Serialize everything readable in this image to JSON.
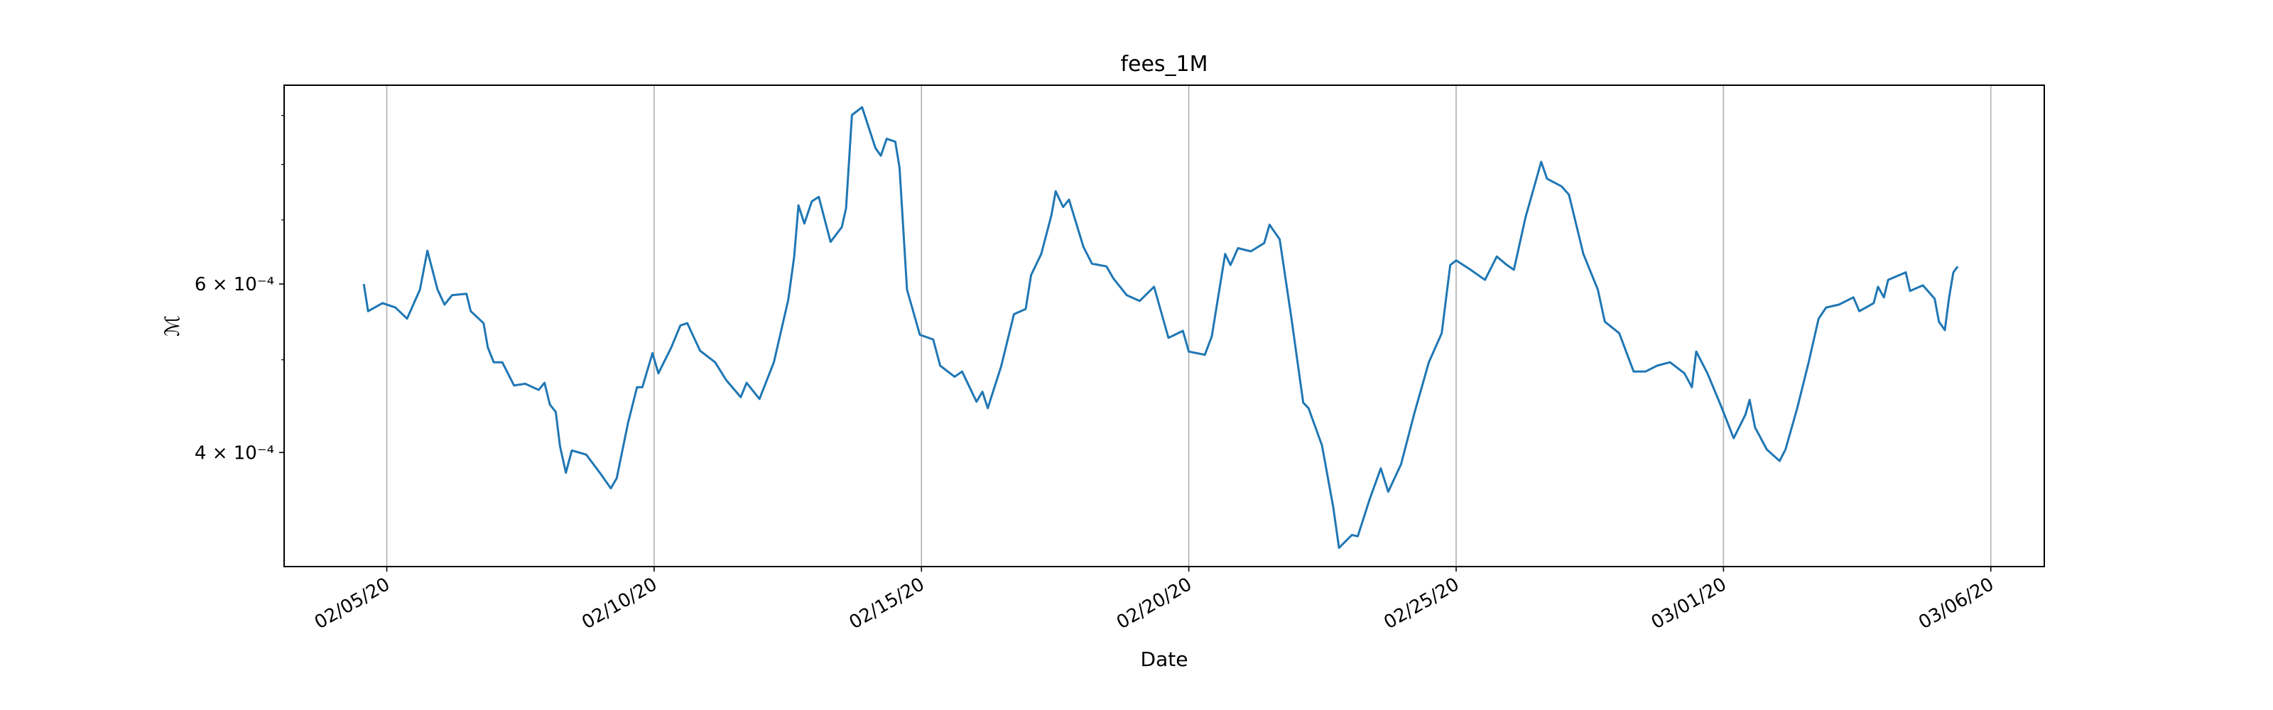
{
  "chart_data": {
    "type": "line",
    "title": "fees_1M",
    "xlabel": "Date",
    "ylabel": "ℳ",
    "xlim": [
      18295.08,
      18328
    ],
    "ylim": [
      0.000304,
      0.000968
    ],
    "yscale": "log",
    "grid": "x",
    "xticks": [
      {
        "value": 18297,
        "label": "02/05/20"
      },
      {
        "value": 18302,
        "label": "02/10/20"
      },
      {
        "value": 18307,
        "label": "02/15/20"
      },
      {
        "value": 18312,
        "label": "02/20/20"
      },
      {
        "value": 18317,
        "label": "02/25/20"
      },
      {
        "value": 18322,
        "label": "03/01/20"
      },
      {
        "value": 18327,
        "label": "03/06/20"
      }
    ],
    "yticks": [
      {
        "value": 0.0004,
        "label": "4 × 10⁻⁴"
      },
      {
        "value": 0.0006,
        "label": "6 × 10⁻⁴"
      }
    ],
    "yminorticks": [
      0.0005,
      0.0007,
      0.0008,
      0.0009
    ],
    "x": [
      18296.57,
      18296.65,
      18296.92,
      18297.16,
      18297.38,
      18297.62,
      18297.76,
      18297.95,
      18298.08,
      18298.22,
      18298.49,
      18298.57,
      18298.81,
      18298.89,
      18299.0,
      18299.16,
      18299.38,
      18299.59,
      18299.84,
      18299.95,
      18300.05,
      18300.16,
      18300.24,
      18300.35,
      18300.46,
      18300.73,
      18301.0,
      18301.19,
      18301.3,
      18301.51,
      18301.68,
      18301.78,
      18301.97,
      18302.08,
      18302.32,
      18302.49,
      18302.62,
      18302.86,
      18303.14,
      18303.35,
      18303.62,
      18303.73,
      18303.97,
      18304.24,
      18304.51,
      18304.62,
      18304.7,
      18304.81,
      18304.95,
      18305.08,
      18305.3,
      18305.51,
      18305.59,
      18305.7,
      18305.89,
      18306.14,
      18306.24,
      18306.35,
      18306.51,
      18306.59,
      18306.73,
      18306.97,
      18307.22,
      18307.35,
      18307.62,
      18307.76,
      18308.03,
      18308.14,
      18308.24,
      18308.49,
      18308.73,
      18308.95,
      18309.05,
      18309.24,
      18309.43,
      18309.51,
      18309.65,
      18309.76,
      18310.03,
      18310.19,
      18310.46,
      18310.59,
      18310.84,
      18311.08,
      18311.35,
      18311.62,
      18311.89,
      18312.0,
      18312.3,
      18312.43,
      18312.68,
      18312.78,
      18312.92,
      18313.16,
      18313.41,
      18313.51,
      18313.7,
      18313.92,
      18314.14,
      18314.24,
      18314.49,
      18314.7,
      18314.81,
      18315.05,
      18315.16,
      18315.38,
      18315.59,
      18315.73,
      18315.97,
      18316.22,
      18316.49,
      18316.73,
      18316.89,
      18317.0,
      18317.27,
      18317.54,
      18317.76,
      18317.95,
      18318.08,
      18318.3,
      18318.51,
      18318.59,
      18318.7,
      18318.97,
      18319.11,
      18319.38,
      18319.65,
      18319.78,
      18320.05,
      18320.32,
      18320.54,
      18320.76,
      18321.0,
      18321.27,
      18321.41,
      18321.49,
      18321.7,
      18321.95,
      18322.19,
      18322.41,
      18322.49,
      18322.59,
      18322.81,
      18323.05,
      18323.16,
      18323.38,
      18323.59,
      18323.78,
      18323.92,
      18324.16,
      18324.43,
      18324.54,
      18324.81,
      18324.89,
      18325.0,
      18325.08,
      18325.41,
      18325.49,
      18325.73,
      18325.95,
      18326.03,
      18326.14,
      18326.22,
      18326.3,
      18326.38
    ],
    "series": [
      {
        "name": "fees_1M",
        "color": "#1f77b4",
        "values": [
          0.0006,
          0.000562,
          0.000573,
          0.000567,
          0.000552,
          0.000592,
          0.00065,
          0.000592,
          0.000571,
          0.000584,
          0.000586,
          0.000562,
          0.000546,
          0.000515,
          0.000497,
          0.000497,
          0.00047,
          0.000472,
          0.000465,
          0.000473,
          0.000449,
          0.000441,
          0.000406,
          0.000381,
          0.000402,
          0.000398,
          0.00038,
          0.000367,
          0.000376,
          0.000429,
          0.000468,
          0.000468,
          0.000508,
          0.000484,
          0.000515,
          0.000543,
          0.000546,
          0.000511,
          0.000497,
          0.000476,
          0.000457,
          0.000473,
          0.000455,
          0.000497,
          0.000578,
          0.000641,
          0.000725,
          0.000694,
          0.000732,
          0.00074,
          0.000664,
          0.000688,
          0.00072,
          0.000901,
          0.000918,
          0.000832,
          0.000817,
          0.000851,
          0.000845,
          0.000794,
          0.000592,
          0.000531,
          0.000525,
          0.000493,
          0.00048,
          0.000486,
          0.000452,
          0.000463,
          0.000445,
          0.000492,
          0.000558,
          0.000565,
          0.000613,
          0.000645,
          0.000708,
          0.00075,
          0.000722,
          0.000735,
          0.000656,
          0.00063,
          0.000626,
          0.000608,
          0.000584,
          0.000576,
          0.000596,
          0.000527,
          0.000536,
          0.00051,
          0.000506,
          0.000529,
          0.000645,
          0.000628,
          0.000654,
          0.000649,
          0.000662,
          0.000692,
          0.000668,
          0.000552,
          0.000451,
          0.000445,
          0.000407,
          0.000351,
          0.000318,
          0.000328,
          0.000327,
          0.000357,
          0.000385,
          0.000364,
          0.000389,
          0.00044,
          0.000497,
          0.000533,
          0.000628,
          0.000635,
          0.000621,
          0.000606,
          0.000641,
          0.000628,
          0.000621,
          0.000705,
          0.000776,
          0.000805,
          0.000773,
          0.000759,
          0.000744,
          0.000645,
          0.000592,
          0.000548,
          0.000533,
          0.000486,
          0.000486,
          0.000493,
          0.000497,
          0.000484,
          0.000468,
          0.00051,
          0.000484,
          0.000448,
          0.000414,
          0.000438,
          0.000454,
          0.000425,
          0.000403,
          0.000392,
          0.000403,
          0.000445,
          0.000496,
          0.000552,
          0.000567,
          0.000571,
          0.000581,
          0.000562,
          0.000573,
          0.000596,
          0.000581,
          0.000606,
          0.000617,
          0.00059,
          0.000598,
          0.000579,
          0.000548,
          0.000537,
          0.000581,
          0.000617,
          0.000626
        ]
      }
    ]
  }
}
